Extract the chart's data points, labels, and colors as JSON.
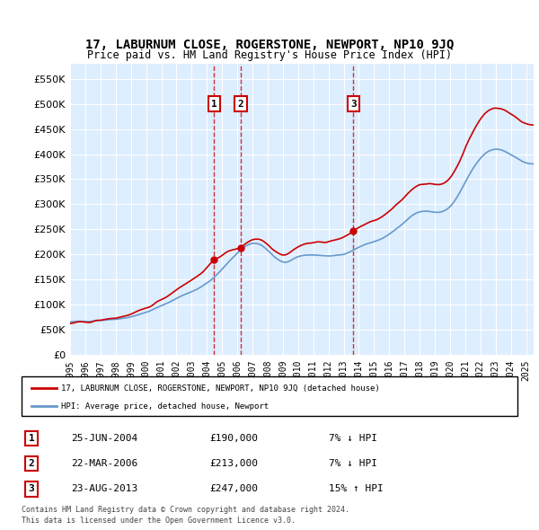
{
  "title": "17, LABURNUM CLOSE, ROGERSTONE, NEWPORT, NP10 9JQ",
  "subtitle": "Price paid vs. HM Land Registry's House Price Index (HPI)",
  "ylabel_ticks": [
    0,
    50000,
    100000,
    150000,
    200000,
    250000,
    300000,
    350000,
    400000,
    450000,
    500000,
    550000
  ],
  "ylim": [
    0,
    580000
  ],
  "xlim_start": 1995.0,
  "xlim_end": 2025.5,
  "sale_dates": [
    2004.48,
    2006.22,
    2013.64
  ],
  "sale_prices": [
    190000,
    213000,
    247000
  ],
  "sale_labels": [
    "1",
    "2",
    "3"
  ],
  "sale_info": [
    {
      "label": "1",
      "date": "25-JUN-2004",
      "price": "£190,000",
      "hpi": "7% ↓ HPI"
    },
    {
      "label": "2",
      "date": "22-MAR-2006",
      "price": "£213,000",
      "hpi": "7% ↓ HPI"
    },
    {
      "label": "3",
      "date": "23-AUG-2013",
      "price": "£247,000",
      "hpi": "15% ↑ HPI"
    }
  ],
  "legend_line1": "17, LABURNUM CLOSE, ROGERSTONE, NEWPORT, NP10 9JQ (detached house)",
  "legend_line2": "HPI: Average price, detached house, Newport",
  "footer1": "Contains HM Land Registry data © Crown copyright and database right 2024.",
  "footer2": "This data is licensed under the Open Government Licence v3.0.",
  "plot_bg_color": "#ddeeff",
  "red_line_color": "#cc0000",
  "blue_line_color": "#6699cc",
  "grid_color": "#ffffff",
  "marker_box_color": "#cc0000"
}
